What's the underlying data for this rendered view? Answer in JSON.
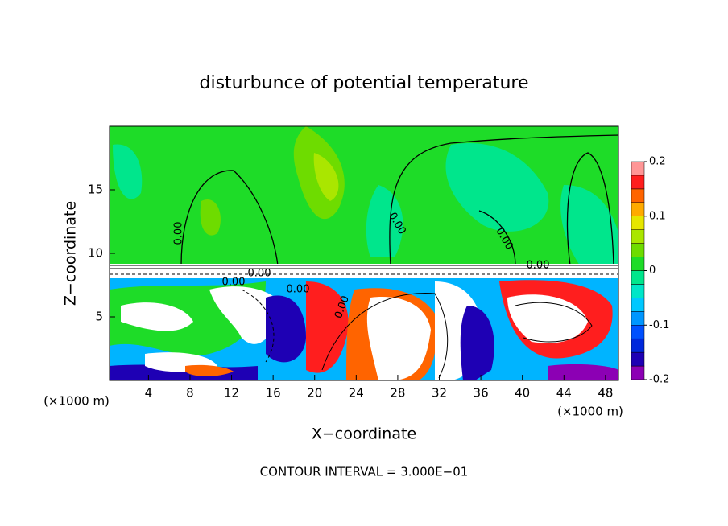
{
  "chart_data": {
    "type": "contour",
    "title": "disturbunce of potential temperature",
    "xlabel": "X−coordinate",
    "ylabel": "Z−coordinate",
    "x_unit": "(×1000 m)",
    "y_unit": "(×1000 m)",
    "note": "CONTOUR INTERVAL = 3.000E−01",
    "xlim": [
      0.25,
      49.25
    ],
    "ylim": [
      0,
      20
    ],
    "xticks": [
      4,
      8,
      12,
      16,
      20,
      24,
      28,
      32,
      36,
      40,
      44,
      48
    ],
    "yticks": [
      5,
      10,
      15
    ],
    "colorbar": {
      "levels": [
        -0.2,
        -0.175,
        -0.15,
        -0.125,
        -0.1,
        -0.075,
        -0.05,
        -0.025,
        0,
        0.025,
        0.05,
        0.075,
        0.1,
        0.125,
        0.15,
        0.175,
        0.2
      ],
      "colors": [
        "#8c00b4",
        "#1e00b4",
        "#0028dc",
        "#0050ff",
        "#0096ff",
        "#00c8ff",
        "#00e6c8",
        "#00e68c",
        "#1edc28",
        "#6edc00",
        "#aae600",
        "#e6e600",
        "#ffaa00",
        "#ff6400",
        "#ff1e1e",
        "#ff9696"
      ],
      "ticks": [
        -0.2,
        -0.1,
        0,
        0.1,
        0.2
      ]
    },
    "contour_labels": [
      "0.00",
      "0.00",
      "0.00",
      "0.00",
      "0.00",
      "0.00",
      "0.00",
      "0.00"
    ]
  }
}
